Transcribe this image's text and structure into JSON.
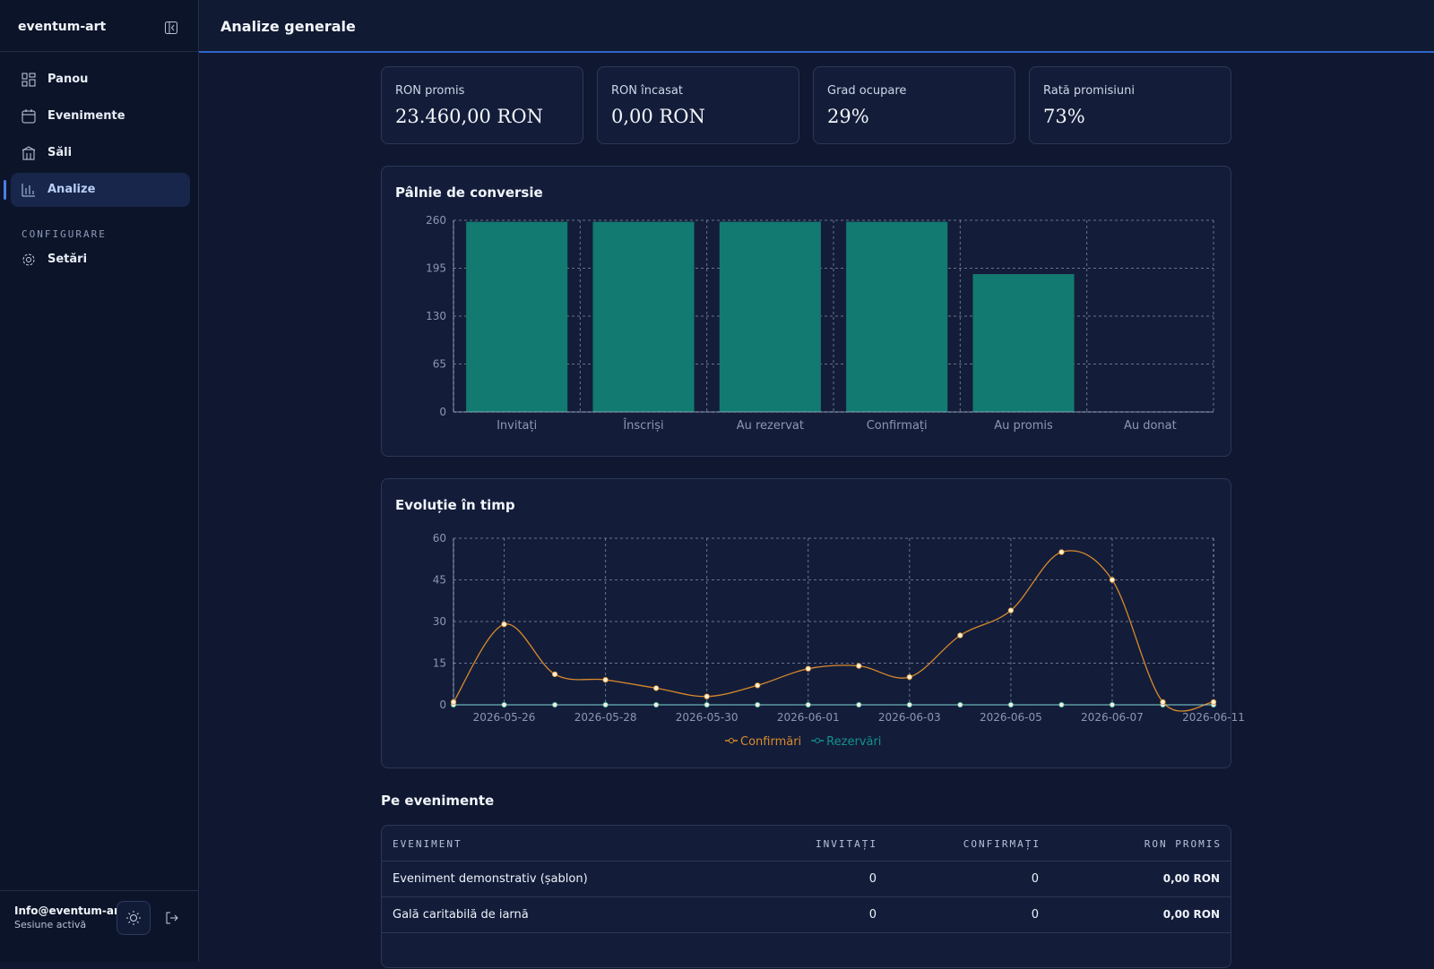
{
  "sidebar": {
    "brand": "eventum-art",
    "nav": [
      "Panou",
      "Evenimente",
      "Săli",
      "Analize"
    ],
    "section": "CONFIGURARE",
    "settings": "Setări",
    "user": "Info@eventum-ar...",
    "status": "Sesiune activă"
  },
  "header": {
    "title": "Analize generale"
  },
  "kpis": [
    {
      "label": "RON promis",
      "value": "23.460,00 RON"
    },
    {
      "label": "RON încasat",
      "value": "0,00 RON"
    },
    {
      "label": "Grad ocupare",
      "value": "29%"
    },
    {
      "label": "Rată promisiuni",
      "value": "73%"
    }
  ],
  "chart_data": [
    {
      "type": "bar",
      "title": "Pâlnie de conversie",
      "categories": [
        "Invitați",
        "Înscriși",
        "Au rezervat",
        "Confirmați",
        "Au promis",
        "Au donat"
      ],
      "values": [
        258,
        258,
        258,
        258,
        187,
        0
      ],
      "color": "#127a70",
      "ylim": [
        0,
        260
      ],
      "yticks": [
        0,
        65,
        130,
        195,
        260
      ],
      "grid": true
    },
    {
      "type": "line",
      "title": "Evoluție în timp",
      "categories": [
        null,
        "2026-05-26",
        null,
        "2026-05-28",
        null,
        "2026-05-30",
        null,
        "2026-06-01",
        null,
        "2026-06-03",
        null,
        "2026-06-05",
        null,
        "2026-06-07",
        null,
        "2026-06-11"
      ],
      "series": [
        {
          "name": "Confirmări",
          "color": "#d98a2b",
          "values": [
            1,
            29,
            11,
            9,
            6,
            3,
            7,
            13,
            14,
            10,
            25,
            34,
            55,
            45,
            1,
            1
          ]
        },
        {
          "name": "Rezervări",
          "color": "#14908a",
          "values": [
            0,
            0,
            0,
            0,
            0,
            0,
            0,
            0,
            0,
            0,
            0,
            0,
            0,
            0,
            0,
            0
          ]
        }
      ],
      "ylim": [
        0,
        60
      ],
      "yticks": [
        0,
        15,
        30,
        45,
        60
      ],
      "grid": true,
      "legend": "bottom"
    }
  ],
  "table": {
    "title": "Pe evenimente",
    "columns": [
      "EVENIMENT",
      "INVITAȚI",
      "CONFIRMAȚI",
      "RON PROMIS"
    ],
    "rows": [
      [
        "Eveniment demonstrativ (șablon)",
        0,
        0,
        "0,00 RON"
      ],
      [
        "Gală caritabilă de iarnă",
        0,
        0,
        "0,00 RON"
      ]
    ]
  }
}
